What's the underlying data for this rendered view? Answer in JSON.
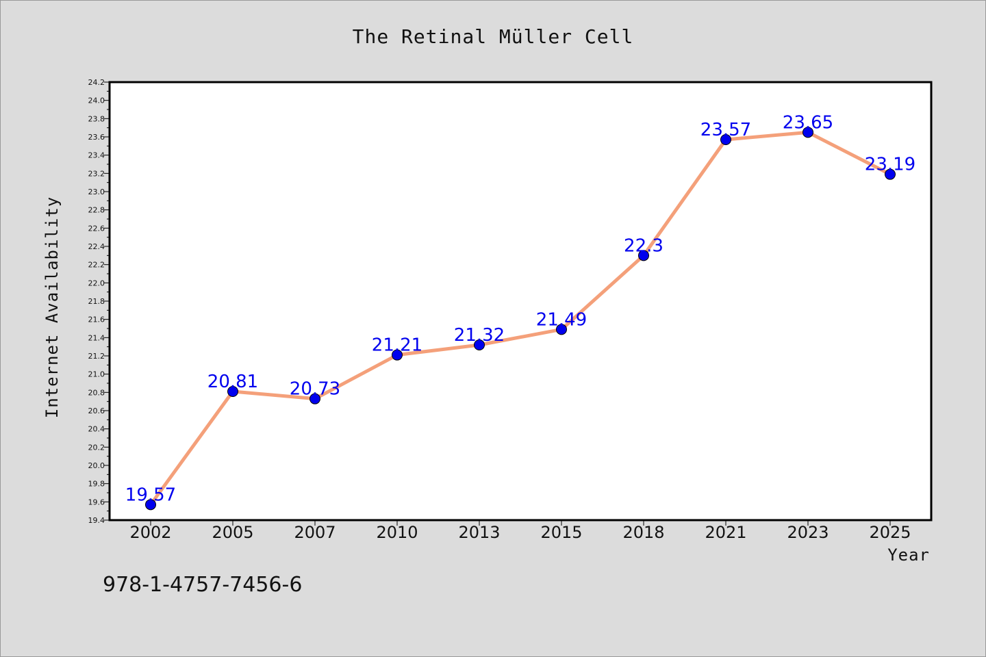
{
  "chart_data": {
    "type": "line",
    "title": "The Retinal Müller Cell",
    "xlabel": "Year",
    "ylabel": "Internet Availability",
    "x": [
      "2002",
      "2005",
      "2007",
      "2010",
      "2013",
      "2015",
      "2018",
      "2021",
      "2023",
      "2025"
    ],
    "series": [
      {
        "values": [
          19.57,
          20.81,
          20.73,
          21.21,
          21.32,
          21.49,
          22.3,
          23.57,
          23.65,
          23.19
        ]
      }
    ],
    "data_labels": [
      "19.57",
      "20.81",
      "20.73",
      "21.21",
      "21.32",
      "21.49",
      "22.3",
      "23.57",
      "23.65",
      "23.19"
    ],
    "ylim": [
      19.4,
      24.2
    ],
    "y_ticks": [
      "19.4",
      "19.6",
      "19.8",
      "20.0",
      "20.2",
      "20.4",
      "20.6",
      "20.8",
      "21.0",
      "21.2",
      "21.4",
      "21.6",
      "21.8",
      "22.0",
      "22.2",
      "22.4",
      "22.6",
      "22.8",
      "23.0",
      "23.2",
      "23.4",
      "23.6",
      "23.8",
      "24.0",
      "24.2"
    ],
    "grid": false,
    "line_color": "#f4a07a",
    "marker_color": "#0000ee",
    "label_color": "#0000ee"
  },
  "footer": {
    "isbn": "978-1-4757-7456-6"
  }
}
